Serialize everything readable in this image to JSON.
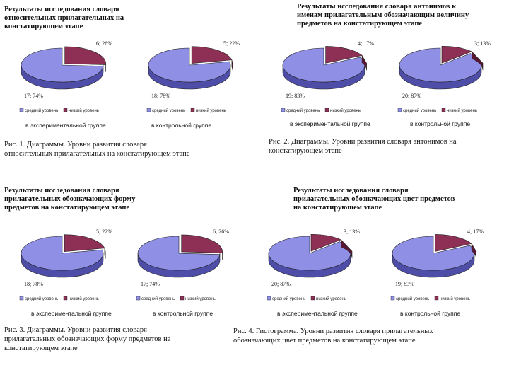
{
  "colors": {
    "medium": "#8f8fe6",
    "medium_side": "#4e4ea8",
    "low": "#8e2f55",
    "low_side": "#5a1733",
    "outline": "#222222"
  },
  "panels": [
    {
      "title": "Результаты исследования словаря\nотносительных прилагательных на\nконстатирующем этапе",
      "caption": "Рис. 1. Диаграммы. Уровни развития словаря\nотносительных прилагательных на констатирующем этапе",
      "groups": [
        "в экспериментальной группе",
        "в контрольной группе"
      ]
    },
    {
      "title": "Результаты исследования словаря антонимов к\nименам прилагательным обозначающим величину\nпредметов на констатирующем этапе",
      "caption": "Рис. 2. Диаграммы. Уровни развития словаря антонимов на\nконстатирующем этапе",
      "groups": [
        "в экспериментальной группе",
        "в контрольной группе"
      ]
    },
    {
      "title": "Результаты исследования словаря\nприлагательных обозначающих форму\nпредметов на констатирующем этапе",
      "caption": "Рис. 3. Диаграммы. Уровни развития словаря\nприлагательных обозначающих форму предметов на\nконстатирующем этапе",
      "groups": [
        "в экспериментальной группе",
        "в контрольной группе"
      ]
    },
    {
      "title": "Результаты исследования словаря\nприлагательных обозначающих цвет предметов\nна констатирующем этапе",
      "caption": "Рис. 4. Гистограмма. Уровни развития словаря прилагательных\nобозначающих цвет предметов на констатирующем этапе",
      "groups": [
        "в экспериментальной группе",
        "в контрольной группе"
      ]
    }
  ],
  "chart_data": [
    {
      "type": "pie",
      "legend": [
        "средний уровень",
        "низкий уровень"
      ],
      "values": [
        17,
        6
      ],
      "labels": [
        "17; 74%",
        "6; 26%"
      ]
    },
    {
      "type": "pie",
      "legend": [
        "средний уровень",
        "низкий уровень"
      ],
      "values": [
        18,
        5
      ],
      "labels": [
        "18; 78%",
        "5; 22%"
      ]
    },
    {
      "type": "pie",
      "legend": [
        "средний уровень",
        "низкий уровень"
      ],
      "values": [
        19,
        4
      ],
      "labels": [
        "19; 83%",
        "4; 17%"
      ]
    },
    {
      "type": "pie",
      "legend": [
        "средний уровень",
        "низкий уровень"
      ],
      "values": [
        20,
        3
      ],
      "labels": [
        "20; 87%",
        "3; 13%"
      ]
    },
    {
      "type": "pie",
      "legend": [
        "средний уровень",
        "низкий уровень"
      ],
      "values": [
        18,
        5
      ],
      "labels": [
        "18; 78%",
        "5; 22%"
      ]
    },
    {
      "type": "pie",
      "legend": [
        "средний уровень",
        "низкий уровень"
      ],
      "values": [
        17,
        6
      ],
      "labels": [
        "17; 74%",
        "6; 26%"
      ]
    },
    {
      "type": "pie",
      "legend": [
        "средний уровень",
        "низкий уровень"
      ],
      "values": [
        20,
        3
      ],
      "labels": [
        "20; 87%",
        "3; 13%"
      ]
    },
    {
      "type": "pie",
      "legend": [
        "средний уровень",
        "низкий уровень"
      ],
      "values": [
        19,
        4
      ],
      "labels": [
        "19; 83%",
        "4; 17%"
      ]
    }
  ]
}
